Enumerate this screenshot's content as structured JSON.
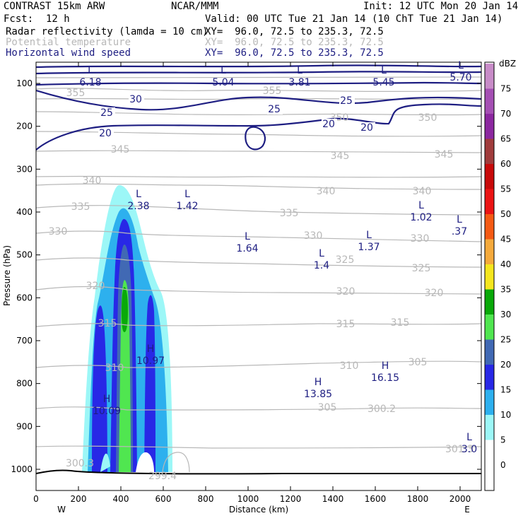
{
  "header": {
    "title": "CONTRAST 15km ARW",
    "center": "NCAR/MMM",
    "init": "Init: 12 UTC Mon 20 Jan 14",
    "fcst_label": "Fcst:",
    "fcst_value": "12 h",
    "valid": "Valid: 00 UTC Tue 21 Jan 14 (10 ChT Tue 21 Jan 14)"
  },
  "fields": [
    {
      "name": "Radar reflectivity (lamda = 10 cm)",
      "xy": "XY=  96.0, 72.5 to 235.3, 72.5",
      "color": "#000000"
    },
    {
      "name": "Potential temperature",
      "xy": "XY=  96.0, 72.5 to 235.3, 72.5",
      "color": "#b8b8b8"
    },
    {
      "name": "Horizontal wind speed",
      "xy": "XY=  96.0, 72.5 to 235.3, 72.5",
      "color": "#1e1e82"
    }
  ],
  "chart_data": {
    "type": "cross-section",
    "xlabel": "Distance (km)",
    "ylabel": "Pressure (hPa)",
    "xlim": [
      0,
      2100
    ],
    "ylim_hpa": [
      1045,
      50
    ],
    "x_ticks": [
      "0",
      "200",
      "400",
      "600",
      "800",
      "1000",
      "1200",
      "1400",
      "1600",
      "1800",
      "2000"
    ],
    "x_tick_values": [
      0,
      200,
      400,
      600,
      800,
      1000,
      1200,
      1400,
      1600,
      1800,
      2000
    ],
    "y_ticks": [
      "100",
      "200",
      "300",
      "400",
      "500",
      "600",
      "700",
      "800",
      "900",
      "1000"
    ],
    "y_tick_values": [
      100,
      200,
      300,
      400,
      500,
      600,
      700,
      800,
      900,
      1000
    ],
    "west_label": "W",
    "east_label": "E",
    "colorbar": {
      "unit": "dBZ",
      "levels": [
        "0",
        "5",
        "10",
        "15",
        "20",
        "25",
        "30",
        "35",
        "40",
        "45",
        "50",
        "55",
        "60",
        "65",
        "70",
        "75"
      ],
      "colors": [
        "#ffffff",
        "#9cf7f7",
        "#2db0ee",
        "#2828e6",
        "#4169b4",
        "#50e650",
        "#09a909",
        "#f5e61e",
        "#f5aa3c",
        "#f55a14",
        "#eb1414",
        "#c80a0a",
        "#a03c3c",
        "#8c28a0",
        "#a550b4",
        "#c88cc8"
      ]
    },
    "potential_temperature_labels": [
      "355",
      "355",
      "350",
      "350",
      "345",
      "345",
      "345",
      "340",
      "340",
      "340",
      "335",
      "335",
      "330",
      "330",
      "330",
      "325",
      "325",
      "320",
      "320",
      "320",
      "315",
      "315",
      "315",
      "310",
      "310",
      "305",
      "305",
      "300.2",
      "300.3",
      "299.4",
      "301.3"
    ],
    "wind_speed_labels": [
      "30",
      "25",
      "25",
      "25",
      "20",
      "20",
      "20"
    ],
    "extrema": [
      {
        "type": "L",
        "value": "6.18"
      },
      {
        "type": "L",
        "value": "5.04"
      },
      {
        "type": "L",
        "value": "3.81"
      },
      {
        "type": "L",
        "value": "5.45"
      },
      {
        "type": "L",
        "value": "5.70"
      },
      {
        "type": "L",
        "value": "2.38"
      },
      {
        "type": "L",
        "value": "1.42"
      },
      {
        "type": "L",
        "value": "1.64"
      },
      {
        "type": "L",
        "value": "1.4"
      },
      {
        "type": "L",
        "value": "1.37"
      },
      {
        "type": "L",
        "value": "1.02"
      },
      {
        "type": "L",
        "value": ".37"
      },
      {
        "type": "H",
        "value": "10.97"
      },
      {
        "type": "H",
        "value": "10.09"
      },
      {
        "type": "H",
        "value": "13.85"
      },
      {
        "type": "H",
        "value": "16.15"
      },
      {
        "type": "L",
        "value": "3.0"
      }
    ]
  }
}
